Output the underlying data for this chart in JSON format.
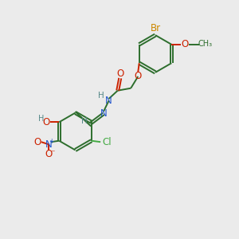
{
  "bg_color": "#ebebeb",
  "bond_color": "#2d6e2d",
  "atom_colors": {
    "Br": "#cc8800",
    "O": "#cc2200",
    "N": "#2255cc",
    "Cl": "#44aa44",
    "H": "#558888",
    "C": "#2d6e2d",
    "default": "#2d6e2d"
  },
  "font_size": 8.5,
  "line_width": 1.4
}
